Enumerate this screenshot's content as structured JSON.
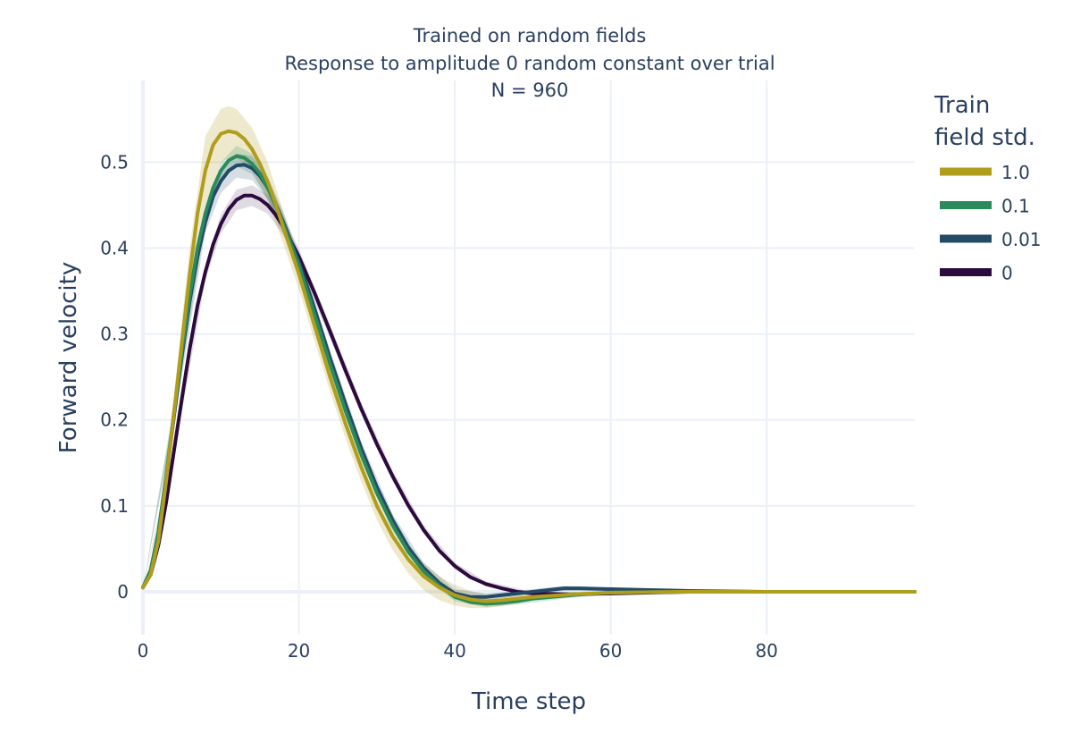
{
  "chart_data": {
    "type": "line",
    "title_lines": [
      "Trained on random fields",
      "Response to amplitude 0 random constant over trial",
      "N = 960"
    ],
    "xlabel": "Time step",
    "ylabel": "Forward velocity",
    "xlim": [
      0,
      99
    ],
    "ylim": [
      -0.05,
      0.595
    ],
    "x_ticks": [
      0,
      20,
      40,
      60,
      80
    ],
    "y_ticks": [
      0,
      0.1,
      0.2,
      0.3,
      0.4,
      0.5
    ],
    "y_tick_labels": [
      "0",
      "0.1",
      "0.2",
      "0.3",
      "0.4",
      "0.5"
    ],
    "grid": true,
    "legend": {
      "title_lines": [
        "Train",
        "field std."
      ],
      "placement": "right"
    },
    "series": [
      {
        "name": "1.0",
        "color": "#b09d1c",
        "band_color": "rgba(176,157,28,0.22)",
        "points": [
          [
            0,
            0.005
          ],
          [
            1,
            0.02
          ],
          [
            2,
            0.06
          ],
          [
            3,
            0.13
          ],
          [
            4,
            0.21
          ],
          [
            5,
            0.29
          ],
          [
            6,
            0.37
          ],
          [
            7,
            0.44
          ],
          [
            8,
            0.49
          ],
          [
            9,
            0.52
          ],
          [
            10,
            0.533
          ],
          [
            11,
            0.536
          ],
          [
            12,
            0.534
          ],
          [
            13,
            0.527
          ],
          [
            14,
            0.515
          ],
          [
            15,
            0.498
          ],
          [
            16,
            0.477
          ],
          [
            17,
            0.452
          ],
          [
            18,
            0.424
          ],
          [
            20,
            0.37
          ],
          [
            22,
            0.31
          ],
          [
            24,
            0.25
          ],
          [
            26,
            0.195
          ],
          [
            28,
            0.145
          ],
          [
            30,
            0.1
          ],
          [
            32,
            0.065
          ],
          [
            34,
            0.038
          ],
          [
            36,
            0.018
          ],
          [
            38,
            0.005
          ],
          [
            40,
            -0.004
          ],
          [
            42,
            -0.009
          ],
          [
            44,
            -0.011
          ],
          [
            46,
            -0.01
          ],
          [
            48,
            -0.008
          ],
          [
            50,
            -0.006
          ],
          [
            55,
            -0.003
          ],
          [
            60,
            -0.001
          ],
          [
            70,
            0
          ],
          [
            80,
            0
          ],
          [
            99,
            0
          ]
        ],
        "band": [
          [
            0,
            0.005,
            0.005
          ],
          [
            2,
            0.05,
            0.07
          ],
          [
            4,
            0.19,
            0.23
          ],
          [
            6,
            0.34,
            0.4
          ],
          [
            8,
            0.45,
            0.53
          ],
          [
            10,
            0.5,
            0.562
          ],
          [
            11,
            0.505,
            0.565
          ],
          [
            12,
            0.505,
            0.562
          ],
          [
            14,
            0.49,
            0.54
          ],
          [
            16,
            0.455,
            0.5
          ],
          [
            18,
            0.405,
            0.443
          ],
          [
            20,
            0.352,
            0.388
          ],
          [
            22,
            0.292,
            0.328
          ],
          [
            24,
            0.233,
            0.267
          ],
          [
            26,
            0.178,
            0.212
          ],
          [
            28,
            0.128,
            0.162
          ],
          [
            30,
            0.084,
            0.116
          ],
          [
            32,
            0.049,
            0.081
          ],
          [
            34,
            0.022,
            0.054
          ],
          [
            36,
            0.002,
            0.034
          ],
          [
            38,
            -0.01,
            0.018
          ],
          [
            40,
            -0.016,
            0.008
          ],
          [
            42,
            -0.019,
            0.001
          ],
          [
            44,
            -0.019,
            -0.003
          ],
          [
            46,
            -0.017,
            -0.003
          ],
          [
            48,
            -0.013,
            -0.003
          ],
          [
            50,
            -0.01,
            -0.002
          ],
          [
            55,
            -0.006,
            0
          ],
          [
            60,
            -0.003,
            0.001
          ],
          [
            70,
            -0.001,
            0.001
          ],
          [
            99,
            0,
            0
          ]
        ]
      },
      {
        "name": "0.1",
        "color": "#2a8a5a",
        "band_color": "rgba(42,138,90,0.2)",
        "points": [
          [
            0,
            0.005
          ],
          [
            1,
            0.025
          ],
          [
            2,
            0.07
          ],
          [
            3,
            0.135
          ],
          [
            4,
            0.21
          ],
          [
            5,
            0.28
          ],
          [
            6,
            0.345
          ],
          [
            7,
            0.4
          ],
          [
            8,
            0.44
          ],
          [
            9,
            0.47
          ],
          [
            10,
            0.49
          ],
          [
            11,
            0.502
          ],
          [
            12,
            0.507
          ],
          [
            13,
            0.505
          ],
          [
            14,
            0.498
          ],
          [
            15,
            0.487
          ],
          [
            16,
            0.47
          ],
          [
            17,
            0.45
          ],
          [
            18,
            0.428
          ],
          [
            20,
            0.38
          ],
          [
            22,
            0.323
          ],
          [
            24,
            0.265
          ],
          [
            26,
            0.21
          ],
          [
            28,
            0.16
          ],
          [
            30,
            0.115
          ],
          [
            32,
            0.078
          ],
          [
            34,
            0.047
          ],
          [
            36,
            0.024
          ],
          [
            38,
            0.007
          ],
          [
            40,
            -0.006
          ],
          [
            42,
            -0.012
          ],
          [
            44,
            -0.014
          ],
          [
            46,
            -0.013
          ],
          [
            48,
            -0.011
          ],
          [
            50,
            -0.008
          ],
          [
            55,
            -0.004
          ],
          [
            60,
            -0.001
          ],
          [
            70,
            0
          ],
          [
            99,
            0
          ]
        ],
        "band": [
          [
            0,
            0.005,
            0.005
          ],
          [
            4,
            0.2,
            0.22
          ],
          [
            8,
            0.43,
            0.45
          ],
          [
            10,
            0.48,
            0.5
          ],
          [
            12,
            0.495,
            0.519
          ],
          [
            14,
            0.486,
            0.51
          ],
          [
            16,
            0.458,
            0.482
          ],
          [
            18,
            0.417,
            0.439
          ],
          [
            20,
            0.37,
            0.39
          ],
          [
            24,
            0.256,
            0.274
          ],
          [
            28,
            0.152,
            0.168
          ],
          [
            32,
            0.071,
            0.085
          ],
          [
            36,
            0.018,
            0.03
          ],
          [
            40,
            -0.011,
            -0.001
          ],
          [
            44,
            -0.018,
            -0.01
          ],
          [
            48,
            -0.015,
            -0.007
          ],
          [
            55,
            -0.007,
            -0.001
          ],
          [
            60,
            -0.003,
            0.001
          ],
          [
            99,
            0,
            0
          ]
        ]
      },
      {
        "name": "0.01",
        "color": "#234a66",
        "band_color": "rgba(35,74,102,0.18)",
        "points": [
          [
            0,
            0.005
          ],
          [
            1,
            0.025
          ],
          [
            2,
            0.07
          ],
          [
            3,
            0.135
          ],
          [
            4,
            0.205
          ],
          [
            5,
            0.275
          ],
          [
            6,
            0.338
          ],
          [
            7,
            0.39
          ],
          [
            8,
            0.43
          ],
          [
            9,
            0.46
          ],
          [
            10,
            0.478
          ],
          [
            11,
            0.49
          ],
          [
            12,
            0.496
          ],
          [
            13,
            0.497
          ],
          [
            14,
            0.493
          ],
          [
            15,
            0.484
          ],
          [
            16,
            0.47
          ],
          [
            17,
            0.452
          ],
          [
            18,
            0.43
          ],
          [
            20,
            0.384
          ],
          [
            22,
            0.33
          ],
          [
            24,
            0.272
          ],
          [
            26,
            0.218
          ],
          [
            28,
            0.167
          ],
          [
            30,
            0.122
          ],
          [
            32,
            0.084
          ],
          [
            34,
            0.052
          ],
          [
            36,
            0.028
          ],
          [
            38,
            0.01
          ],
          [
            40,
            -0.002
          ],
          [
            42,
            -0.006
          ],
          [
            44,
            -0.006
          ],
          [
            46,
            -0.004
          ],
          [
            48,
            -0.002
          ],
          [
            50,
            0
          ],
          [
            52,
            0.002
          ],
          [
            54,
            0.004
          ],
          [
            56,
            0.004
          ],
          [
            60,
            0.003
          ],
          [
            65,
            0.002
          ],
          [
            70,
            0.001
          ],
          [
            80,
            0
          ],
          [
            99,
            0
          ]
        ],
        "band": [
          [
            0,
            0.005,
            0.005
          ],
          [
            4,
            0.195,
            0.215
          ],
          [
            8,
            0.418,
            0.442
          ],
          [
            10,
            0.464,
            0.492
          ],
          [
            12,
            0.482,
            0.51
          ],
          [
            14,
            0.479,
            0.507
          ],
          [
            16,
            0.457,
            0.483
          ],
          [
            18,
            0.418,
            0.442
          ],
          [
            20,
            0.373,
            0.395
          ],
          [
            24,
            0.263,
            0.281
          ],
          [
            28,
            0.159,
            0.175
          ],
          [
            32,
            0.077,
            0.091
          ],
          [
            36,
            0.022,
            0.034
          ],
          [
            40,
            -0.007,
            0.003
          ],
          [
            44,
            -0.01,
            -0.002
          ],
          [
            50,
            -0.003,
            0.003
          ],
          [
            54,
            0.001,
            0.007
          ],
          [
            60,
            0.001,
            0.005
          ],
          [
            70,
            0,
            0.002
          ],
          [
            99,
            0,
            0
          ]
        ]
      },
      {
        "name": "0",
        "color": "#2c0a3e",
        "band_color": "rgba(44,10,62,0.15)",
        "points": [
          [
            0,
            0.005
          ],
          [
            1,
            0.02
          ],
          [
            2,
            0.055
          ],
          [
            3,
            0.105
          ],
          [
            4,
            0.165
          ],
          [
            5,
            0.225
          ],
          [
            6,
            0.283
          ],
          [
            7,
            0.333
          ],
          [
            8,
            0.372
          ],
          [
            9,
            0.404
          ],
          [
            10,
            0.428
          ],
          [
            11,
            0.445
          ],
          [
            12,
            0.456
          ],
          [
            13,
            0.461
          ],
          [
            14,
            0.461
          ],
          [
            15,
            0.457
          ],
          [
            16,
            0.45
          ],
          [
            17,
            0.439
          ],
          [
            18,
            0.425
          ],
          [
            20,
            0.39
          ],
          [
            22,
            0.348
          ],
          [
            24,
            0.303
          ],
          [
            26,
            0.257
          ],
          [
            28,
            0.213
          ],
          [
            30,
            0.172
          ],
          [
            32,
            0.135
          ],
          [
            34,
            0.101
          ],
          [
            36,
            0.072
          ],
          [
            38,
            0.048
          ],
          [
            40,
            0.03
          ],
          [
            42,
            0.017
          ],
          [
            44,
            0.009
          ],
          [
            46,
            0.004
          ],
          [
            48,
            0
          ],
          [
            50,
            -0.002
          ],
          [
            55,
            -0.003
          ],
          [
            60,
            -0.002
          ],
          [
            70,
            0
          ],
          [
            99,
            0
          ]
        ],
        "band": [
          [
            0,
            0.005,
            0.005
          ],
          [
            4,
            0.158,
            0.172
          ],
          [
            8,
            0.363,
            0.381
          ],
          [
            10,
            0.417,
            0.439
          ],
          [
            12,
            0.444,
            0.468
          ],
          [
            14,
            0.449,
            0.473
          ],
          [
            16,
            0.44,
            0.462
          ],
          [
            18,
            0.415,
            0.435
          ],
          [
            20,
            0.381,
            0.399
          ],
          [
            24,
            0.295,
            0.311
          ],
          [
            28,
            0.206,
            0.22
          ],
          [
            32,
            0.129,
            0.141
          ],
          [
            36,
            0.067,
            0.077
          ],
          [
            40,
            0.026,
            0.034
          ],
          [
            44,
            0.006,
            0.012
          ],
          [
            50,
            -0.004,
            0
          ],
          [
            55,
            -0.005,
            -0.001
          ],
          [
            60,
            -0.003,
            -0.001
          ],
          [
            70,
            -0.001,
            0.001
          ],
          [
            99,
            0,
            0
          ]
        ]
      }
    ]
  }
}
